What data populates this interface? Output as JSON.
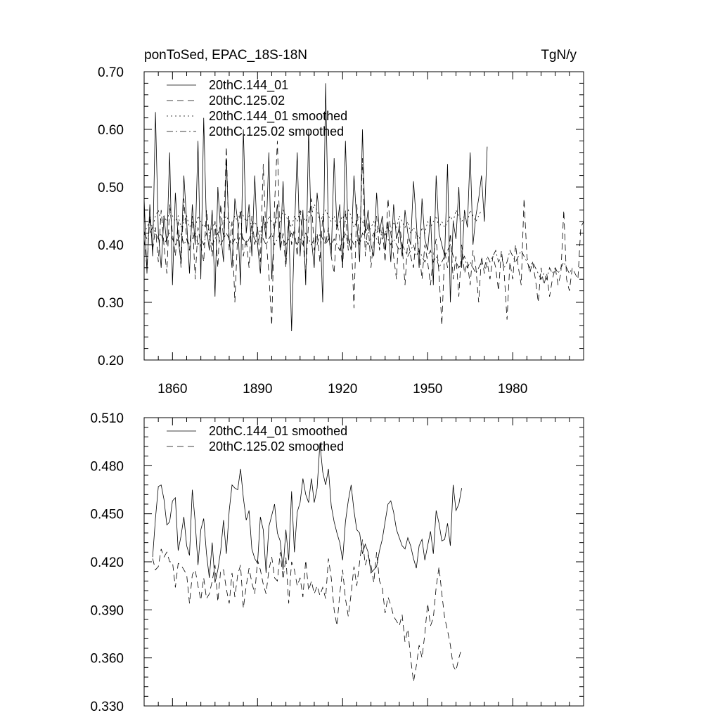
{
  "chart_data": [
    {
      "type": "line",
      "title_left": "ponToSed, EPAC_18S-18N",
      "title_right": "TgN/y",
      "xlabel": "",
      "ylabel": "",
      "xlim": [
        1850,
        2005
      ],
      "ylim": [
        0.2,
        0.7
      ],
      "x_ticks": [
        1860,
        1890,
        1920,
        1950,
        1980
      ],
      "x_tick_labels": [
        "1860",
        "1890",
        "1920",
        "1950",
        "1980"
      ],
      "y_ticks": [
        0.2,
        0.3,
        0.4,
        0.5,
        0.6,
        0.7
      ],
      "y_tick_labels": [
        "0.20",
        "0.30",
        "0.40",
        "0.50",
        "0.60",
        "0.70"
      ],
      "legend_position": "top-left",
      "series": [
        {
          "name": "20thC.144_01",
          "style": "solid",
          "x_start": 1850,
          "values": [
            0.48,
            0.35,
            0.47,
            0.38,
            0.63,
            0.42,
            0.36,
            0.45,
            0.4,
            0.56,
            0.33,
            0.49,
            0.41,
            0.37,
            0.52,
            0.44,
            0.35,
            0.47,
            0.4,
            0.58,
            0.34,
            0.62,
            0.43,
            0.39,
            0.46,
            0.31,
            0.5,
            0.42,
            0.37,
            0.55,
            0.41,
            0.36,
            0.48,
            0.44,
            0.33,
            0.6,
            0.42,
            0.47,
            0.38,
            0.52,
            0.4,
            0.35,
            0.45,
            0.41,
            0.56,
            0.34,
            0.43,
            0.47,
            0.39,
            0.51,
            0.37,
            0.44,
            0.25,
            0.42,
            0.56,
            0.38,
            0.46,
            0.33,
            0.6,
            0.41,
            0.36,
            0.49,
            0.44,
            0.3,
            0.68,
            0.42,
            0.38,
            0.55,
            0.43,
            0.47,
            0.36,
            0.58,
            0.41,
            0.39,
            0.52,
            0.44,
            0.37,
            0.6,
            0.42,
            0.46,
            0.4,
            0.38,
            0.49,
            0.42,
            0.45,
            0.39,
            0.44,
            0.37,
            0.47,
            0.41,
            0.43,
            0.38,
            0.46,
            0.42,
            0.4,
            0.51,
            0.44,
            0.36,
            0.48,
            0.41,
            0.39,
            0.45,
            0.33,
            0.52,
            0.42,
            0.4,
            0.38,
            0.54,
            0.3,
            0.44,
            0.41,
            0.5,
            0.36,
            0.46,
            0.43,
            0.56,
            0.4,
            0.45,
            0.48,
            0.52,
            0.44,
            0.57
          ]
        },
        {
          "name": "20thC.125.02",
          "style": "dashed",
          "x_start": 1850,
          "values": [
            0.41,
            0.36,
            0.45,
            0.39,
            0.43,
            0.37,
            0.46,
            0.4,
            0.35,
            0.47,
            0.42,
            0.38,
            0.44,
            0.36,
            0.48,
            0.41,
            0.39,
            0.45,
            0.34,
            0.43,
            0.4,
            0.37,
            0.46,
            0.42,
            0.38,
            0.44,
            0.36,
            0.47,
            0.41,
            0.57,
            0.39,
            0.44,
            0.3,
            0.42,
            0.46,
            0.38,
            0.41,
            0.36,
            0.45,
            0.4,
            0.43,
            0.37,
            0.54,
            0.41,
            0.35,
            0.26,
            0.47,
            0.58,
            0.39,
            0.42,
            0.36,
            0.45,
            0.4,
            0.43,
            0.38,
            0.46,
            0.41,
            0.35,
            0.44,
            0.48,
            0.39,
            0.42,
            0.37,
            0.45,
            0.4,
            0.43,
            0.38,
            0.35,
            0.44,
            0.41,
            0.36,
            0.46,
            0.39,
            0.42,
            0.29,
            0.47,
            0.4,
            0.55,
            0.38,
            0.44,
            0.36,
            0.41,
            0.45,
            0.39,
            0.43,
            0.37,
            0.48,
            0.42,
            0.38,
            0.34,
            0.44,
            0.4,
            0.33,
            0.41,
            0.38,
            0.36,
            0.42,
            0.39,
            0.34,
            0.4,
            0.37,
            0.33,
            0.38,
            0.41,
            0.35,
            0.26,
            0.39,
            0.36,
            0.42,
            0.34,
            0.38,
            0.31,
            0.4,
            0.35,
            0.37,
            0.33,
            0.39,
            0.36,
            0.3,
            0.38,
            0.35,
            0.37,
            0.34,
            0.38,
            0.36,
            0.32,
            0.39,
            0.35,
            0.27,
            0.37,
            0.34,
            0.4,
            0.36,
            0.33,
            0.48,
            0.38,
            0.35,
            0.37,
            0.34,
            0.3,
            0.36,
            0.33,
            0.35,
            0.31,
            0.34,
            0.36,
            0.33,
            0.35,
            0.46,
            0.34,
            0.32,
            0.36,
            0.35,
            0.34,
            0.43,
            0.44
          ]
        },
        {
          "name": "20thC.144_01 smoothed",
          "style": "dotted",
          "x_start": 1850,
          "values": [
            0.42,
            0.43,
            0.44,
            0.43,
            0.45,
            0.46,
            0.44,
            0.45,
            0.44,
            0.46,
            0.45,
            0.44,
            0.45,
            0.43,
            0.44,
            0.45,
            0.43,
            0.44,
            0.43,
            0.45,
            0.44,
            0.43,
            0.44,
            0.42,
            0.43,
            0.44,
            0.42,
            0.43,
            0.44,
            0.45,
            0.44,
            0.43,
            0.45,
            0.44,
            0.46,
            0.45,
            0.44,
            0.45,
            0.43,
            0.44,
            0.43,
            0.42,
            0.44,
            0.43,
            0.45,
            0.44,
            0.43,
            0.45,
            0.44,
            0.46,
            0.45,
            0.44,
            0.43,
            0.45,
            0.44,
            0.46,
            0.45,
            0.44,
            0.46,
            0.45,
            0.47,
            0.46,
            0.44,
            0.45,
            0.46,
            0.45,
            0.44,
            0.45,
            0.43,
            0.44,
            0.45,
            0.44,
            0.46,
            0.45,
            0.43,
            0.44,
            0.45,
            0.44,
            0.43,
            0.42,
            0.43,
            0.44,
            0.42,
            0.43,
            0.41,
            0.42,
            0.43,
            0.42,
            0.44,
            0.43,
            0.45,
            0.44,
            0.43,
            0.44,
            0.42,
            0.43,
            0.42,
            0.41,
            0.43,
            0.42,
            0.44,
            0.43,
            0.44,
            0.45,
            0.43,
            0.44,
            0.43,
            0.44,
            0.45,
            0.44,
            0.46,
            0.45,
            0.44,
            0.45,
            0.44,
            0.46,
            0.45,
            0.44,
            0.45,
            0.46
          ]
        },
        {
          "name": "20thC.125.02 smoothed",
          "style": "dashdot",
          "x_start": 1850,
          "values": [
            0.42,
            0.41,
            0.42,
            0.43,
            0.42,
            0.41,
            0.42,
            0.4,
            0.41,
            0.42,
            0.41,
            0.4,
            0.41,
            0.42,
            0.4,
            0.41,
            0.4,
            0.41,
            0.42,
            0.4,
            0.41,
            0.4,
            0.42,
            0.41,
            0.4,
            0.41,
            0.42,
            0.4,
            0.41,
            0.42,
            0.41,
            0.4,
            0.41,
            0.4,
            0.42,
            0.41,
            0.4,
            0.41,
            0.42,
            0.41,
            0.4,
            0.42,
            0.41,
            0.4,
            0.41,
            0.42,
            0.4,
            0.41,
            0.42,
            0.41,
            0.4,
            0.41,
            0.42,
            0.41,
            0.4,
            0.41,
            0.4,
            0.42,
            0.41,
            0.4,
            0.41,
            0.4,
            0.42,
            0.41,
            0.4,
            0.41,
            0.4,
            0.41,
            0.4,
            0.39,
            0.41,
            0.42,
            0.4,
            0.41,
            0.4,
            0.41,
            0.4,
            0.42,
            0.41,
            0.4,
            0.41,
            0.42,
            0.41,
            0.4,
            0.41,
            0.42,
            0.41,
            0.4,
            0.41,
            0.4,
            0.39,
            0.4,
            0.39,
            0.38,
            0.39,
            0.4,
            0.38,
            0.39,
            0.38,
            0.37,
            0.38,
            0.39,
            0.37,
            0.38,
            0.36,
            0.37,
            0.38,
            0.39,
            0.4,
            0.38,
            0.37,
            0.36,
            0.37,
            0.38,
            0.36,
            0.37,
            0.36,
            0.35,
            0.36,
            0.37,
            0.36,
            0.38,
            0.37,
            0.38,
            0.39,
            0.37,
            0.38,
            0.36,
            0.37,
            0.39,
            0.38,
            0.37,
            0.38,
            0.39,
            0.38,
            0.37,
            0.36,
            0.37,
            0.36,
            0.35,
            0.34,
            0.35,
            0.34,
            0.36,
            0.35,
            0.36,
            0.35,
            0.36,
            0.37,
            0.36,
            0.35,
            0.36
          ]
        }
      ]
    },
    {
      "type": "line",
      "title_left": "",
      "title_right": "",
      "xlabel": "",
      "ylabel": "",
      "xlim": [
        1850,
        2005
      ],
      "ylim": [
        0.33,
        0.51
      ],
      "x_ticks": [
        1860,
        1890,
        1920,
        1950,
        1980
      ],
      "x_tick_labels": [],
      "y_ticks": [
        0.33,
        0.36,
        0.39,
        0.42,
        0.45,
        0.48,
        0.51
      ],
      "y_tick_labels": [
        "0.330",
        "0.360",
        "0.390",
        "0.420",
        "0.450",
        "0.480",
        "0.510"
      ],
      "legend_position": "top-left",
      "series": [
        {
          "name": "20thC.144_01 smoothed",
          "style": "solid",
          "x_start": 1853,
          "values": [
            0.423,
            0.447,
            0.467,
            0.468,
            0.459,
            0.443,
            0.445,
            0.458,
            0.46,
            0.427,
            0.436,
            0.448,
            0.43,
            0.424,
            0.465,
            0.445,
            0.418,
            0.44,
            0.447,
            0.425,
            0.41,
            0.432,
            0.407,
            0.415,
            0.427,
            0.446,
            0.425,
            0.452,
            0.468,
            0.466,
            0.465,
            0.478,
            0.46,
            0.446,
            0.452,
            0.428,
            0.422,
            0.419,
            0.448,
            0.44,
            0.413,
            0.442,
            0.449,
            0.456,
            0.438,
            0.433,
            0.415,
            0.44,
            0.421,
            0.464,
            0.426,
            0.451,
            0.457,
            0.472,
            0.462,
            0.457,
            0.472,
            0.457,
            0.466,
            0.494,
            0.476,
            0.468,
            0.478,
            0.455,
            0.445,
            0.438,
            0.432,
            0.421,
            0.445,
            0.458,
            0.468,
            0.452,
            0.44,
            0.438,
            0.425,
            0.431,
            0.426,
            0.413,
            0.415,
            0.417,
            0.427,
            0.434,
            0.445,
            0.456,
            0.458,
            0.451,
            0.44,
            0.435,
            0.43,
            0.428,
            0.435,
            0.43,
            0.422,
            0.416,
            0.43,
            0.434,
            0.421,
            0.43,
            0.439,
            0.425,
            0.452,
            0.444,
            0.433,
            0.434,
            0.444,
            0.43,
            0.468,
            0.452,
            0.456,
            0.466
          ]
        },
        {
          "name": "20thC.125.02 smoothed",
          "style": "dashed",
          "x_start": 1853,
          "values": [
            0.422,
            0.415,
            0.417,
            0.428,
            0.423,
            0.426,
            0.42,
            0.42,
            0.404,
            0.419,
            0.418,
            0.415,
            0.412,
            0.394,
            0.412,
            0.415,
            0.405,
            0.396,
            0.41,
            0.397,
            0.4,
            0.408,
            0.418,
            0.395,
            0.415,
            0.415,
            0.403,
            0.394,
            0.413,
            0.398,
            0.412,
            0.418,
            0.391,
            0.405,
            0.416,
            0.407,
            0.4,
            0.421,
            0.415,
            0.406,
            0.4,
            0.415,
            0.423,
            0.41,
            0.408,
            0.426,
            0.409,
            0.423,
            0.394,
            0.42,
            0.415,
            0.405,
            0.41,
            0.398,
            0.421,
            0.402,
            0.408,
            0.4,
            0.405,
            0.399,
            0.404,
            0.397,
            0.422,
            0.41,
            0.39,
            0.38,
            0.4,
            0.415,
            0.397,
            0.386,
            0.4,
            0.417,
            0.405,
            0.42,
            0.434,
            0.418,
            0.424,
            0.418,
            0.407,
            0.426,
            0.408,
            0.404,
            0.388,
            0.398,
            0.393,
            0.386,
            0.383,
            0.38,
            0.387,
            0.37,
            0.378,
            0.36,
            0.345,
            0.355,
            0.368,
            0.36,
            0.375,
            0.394,
            0.38,
            0.385,
            0.404,
            0.417,
            0.4,
            0.385,
            0.377,
            0.368,
            0.355,
            0.352,
            0.36,
            0.366
          ]
        }
      ]
    }
  ]
}
